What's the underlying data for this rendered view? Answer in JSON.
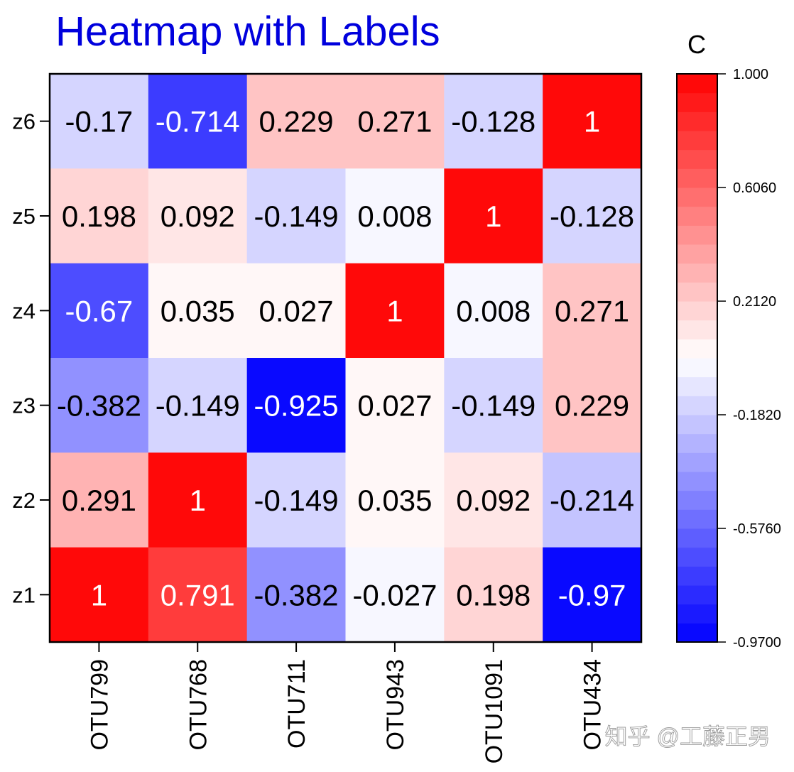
{
  "chart_data": {
    "type": "heatmap",
    "title": "Heatmap with Labels",
    "x_categories": [
      "OTU799",
      "OTU768",
      "OTU711",
      "OTU943",
      "OTU1091",
      "OTU434"
    ],
    "y_categories": [
      "z6",
      "z5",
      "z4",
      "z3",
      "z2",
      "z1"
    ],
    "matrix": [
      [
        -0.17,
        -0.714,
        0.229,
        0.271,
        -0.128,
        1
      ],
      [
        0.198,
        0.092,
        -0.149,
        0.008,
        1,
        -0.128
      ],
      [
        -0.67,
        0.035,
        0.027,
        1,
        0.008,
        0.271
      ],
      [
        -0.382,
        -0.149,
        -0.925,
        0.027,
        -0.149,
        0.229
      ],
      [
        0.291,
        1,
        -0.149,
        0.035,
        0.092,
        -0.214
      ],
      [
        1,
        0.791,
        -0.382,
        -0.027,
        0.198,
        -0.97
      ]
    ],
    "cell_labels": [
      [
        "-0.17",
        "-0.714",
        "0.229",
        "0.271",
        "-0.128",
        "1"
      ],
      [
        "0.198",
        "0.092",
        "-0.149",
        "0.008",
        "1",
        "-0.128"
      ],
      [
        "-0.67",
        "0.035",
        "0.027",
        "1",
        "0.008",
        "0.271"
      ],
      [
        "-0.382",
        "-0.149",
        "-0.925",
        "0.027",
        "-0.149",
        "0.229"
      ],
      [
        "0.291",
        "1",
        "-0.149",
        "0.035",
        "0.092",
        "-0.214"
      ],
      [
        "1",
        "0.791",
        "-0.382",
        "-0.027",
        "0.198",
        "-0.97"
      ]
    ],
    "colorbar": {
      "title": "C",
      "min": -0.97,
      "max": 1.0,
      "levels": 30,
      "tick_values": [
        1.0,
        0.606,
        0.212,
        -0.182,
        -0.576,
        -0.97
      ],
      "tick_labels": [
        "1.000",
        "0.6060",
        "0.2120",
        "-0.1820",
        "-0.5760",
        "-0.9700"
      ]
    },
    "colors": {
      "low": "#0000ff",
      "mid": "#ffffff",
      "high": "#ff0000",
      "title": "#0000dd",
      "text_dark": "#000000",
      "text_light": "#ffffff"
    }
  },
  "watermark": "知乎 @工藤正男"
}
